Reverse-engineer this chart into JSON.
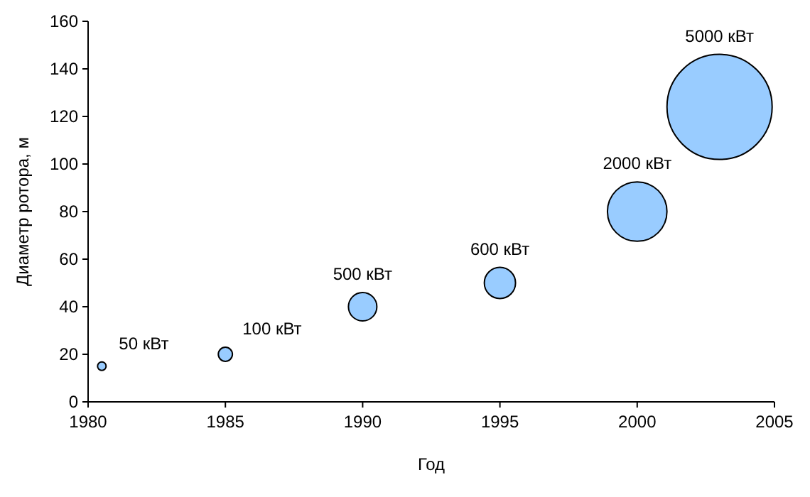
{
  "chart_data": {
    "type": "bubble",
    "xlabel": "Год",
    "ylabel": "Диаметр ротора, м",
    "x": [
      1980.5,
      1985,
      1990,
      1995,
      2000,
      2003
    ],
    "values": [
      15,
      20,
      40,
      50,
      80,
      124
    ],
    "sizes": [
      0.0066,
      0.018,
      0.073,
      0.088,
      0.32,
      1
    ],
    "color": "#99ccff",
    "xlim": [
      1980,
      2005
    ],
    "xticks": [
      1980,
      1985,
      1990,
      1995,
      2000,
      2005
    ],
    "ylim": [
      0,
      160
    ],
    "yticks": [
      0,
      20,
      40,
      60,
      80,
      100,
      120,
      140,
      160
    ],
    "grid": false,
    "annotations": [
      "50 кВт",
      "100 кВт",
      "500 кВт",
      "600 кВт",
      "2000 кВт",
      "5000 кВт"
    ]
  }
}
